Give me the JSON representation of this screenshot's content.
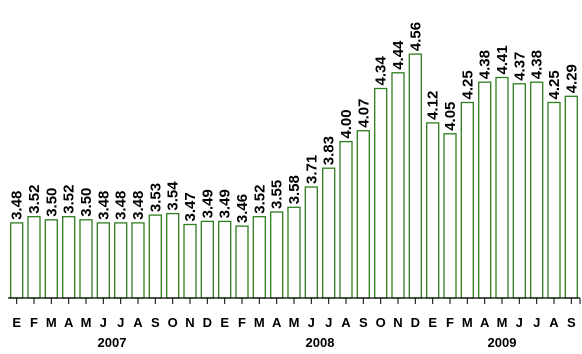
{
  "chart_data": {
    "type": "bar",
    "categories": [
      "E",
      "F",
      "M",
      "A",
      "M",
      "J",
      "J",
      "A",
      "S",
      "O",
      "N",
      "D",
      "E",
      "F",
      "M",
      "A",
      "M",
      "J",
      "J",
      "A",
      "S",
      "O",
      "N",
      "D",
      "E",
      "F",
      "M",
      "A",
      "M",
      "J",
      "J",
      "A",
      "S"
    ],
    "years": [
      "2007",
      "2008",
      "2009"
    ],
    "values": [
      3.48,
      3.52,
      3.5,
      3.52,
      3.5,
      3.48,
      3.48,
      3.48,
      3.53,
      3.54,
      3.47,
      3.49,
      3.49,
      3.46,
      3.52,
      3.55,
      3.58,
      3.71,
      3.83,
      4.0,
      4.07,
      4.34,
      4.44,
      4.56,
      4.12,
      4.05,
      4.25,
      4.38,
      4.41,
      4.37,
      4.38,
      4.25,
      4.29
    ],
    "data_labels": [
      "3.48",
      "3.52",
      "3.50",
      "3.52",
      "3.50",
      "3.48",
      "3.48",
      "3.48",
      "3.53",
      "3.54",
      "3.47",
      "3.49",
      "3.49",
      "3.46",
      "3.52",
      "3.55",
      "3.58",
      "3.71",
      "3.83",
      "4.00",
      "4.07",
      "4.34",
      "4.44",
      "4.56",
      "4.12",
      "4.05",
      "4.25",
      "4.38",
      "4.41",
      "4.37",
      "4.38",
      "4.25",
      "4.29"
    ],
    "title": "",
    "xlabel": "",
    "ylabel": "",
    "ylim": [
      3.0,
      4.65
    ],
    "grid": false,
    "colors": {
      "bar_fill": "#ffffff",
      "bar_stroke": "#2e7d1e",
      "axis": "#000000"
    }
  }
}
